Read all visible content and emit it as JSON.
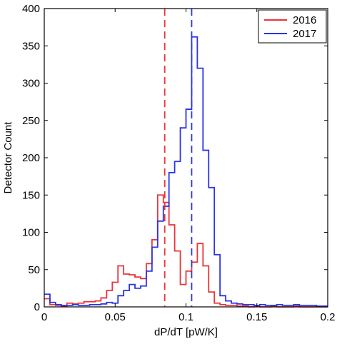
{
  "chart_data": {
    "type": "histogram",
    "title": "",
    "xlabel": "dP/dT [pW/K]",
    "ylabel": "Detector Count",
    "xlim": [
      0,
      0.2
    ],
    "ylim": [
      0,
      400
    ],
    "x_ticks": [
      {
        "value": 0,
        "label": "0"
      },
      {
        "value": 0.05,
        "label": "0.05"
      },
      {
        "value": 0.1,
        "label": "0.1"
      },
      {
        "value": 0.15,
        "label": "0.15"
      },
      {
        "value": 0.2,
        "label": "0.2"
      }
    ],
    "y_ticks": [
      {
        "value": 0,
        "label": "0"
      },
      {
        "value": 50,
        "label": "50"
      },
      {
        "value": 100,
        "label": "100"
      },
      {
        "value": 150,
        "label": "150"
      },
      {
        "value": 200,
        "label": "200"
      },
      {
        "value": 250,
        "label": "250"
      },
      {
        "value": 300,
        "label": "300"
      },
      {
        "value": 350,
        "label": "350"
      },
      {
        "value": 400,
        "label": "400"
      }
    ],
    "bin_width": 0.004,
    "bin_starts": [
      0,
      0.004,
      0.008,
      0.012,
      0.016,
      0.02,
      0.024,
      0.028,
      0.032,
      0.036,
      0.04,
      0.044,
      0.048,
      0.052,
      0.056,
      0.06,
      0.064,
      0.068,
      0.072,
      0.076,
      0.08,
      0.084,
      0.088,
      0.092,
      0.096,
      0.1,
      0.104,
      0.108,
      0.112,
      0.116,
      0.12,
      0.124,
      0.128,
      0.132,
      0.136,
      0.14,
      0.144,
      0.148,
      0.152,
      0.156,
      0.16,
      0.164,
      0.168,
      0.172,
      0.176,
      0.18,
      0.184,
      0.188,
      0.192,
      0.196
    ],
    "series": [
      {
        "name": "2016",
        "color": "#e8353a",
        "values": [
          11,
          3,
          2,
          1,
          5,
          4,
          5,
          7,
          7,
          8,
          12,
          22,
          33,
          55,
          44,
          43,
          40,
          38,
          58,
          90,
          150,
          140,
          110,
          75,
          30,
          48,
          60,
          85,
          55,
          20,
          5,
          3,
          2,
          2,
          1,
          1,
          0,
          1,
          0,
          0,
          1,
          0,
          0,
          0,
          1,
          0,
          0,
          0,
          0,
          0
        ]
      },
      {
        "name": "2017",
        "color": "#2b34e6",
        "values": [
          17,
          6,
          3,
          2,
          2,
          3,
          2,
          2,
          3,
          3,
          4,
          6,
          5,
          15,
          22,
          30,
          25,
          28,
          48,
          80,
          115,
          135,
          180,
          195,
          240,
          265,
          362,
          320,
          210,
          160,
          70,
          15,
          8,
          5,
          4,
          3,
          3,
          2,
          3,
          2,
          2,
          3,
          2,
          2,
          3,
          2,
          2,
          2,
          1,
          1
        ]
      }
    ],
    "reference_lines": [
      {
        "series": "2016",
        "x": 0.085,
        "style": "dashed",
        "color": "#e8353a"
      },
      {
        "series": "2017",
        "x": 0.104,
        "style": "dashed",
        "color": "#2b34e6"
      }
    ],
    "legend": {
      "position": "top-right",
      "entries": [
        {
          "label": "2016",
          "color": "#e8353a"
        },
        {
          "label": "2017",
          "color": "#2b34e6"
        }
      ]
    },
    "grid": false
  }
}
